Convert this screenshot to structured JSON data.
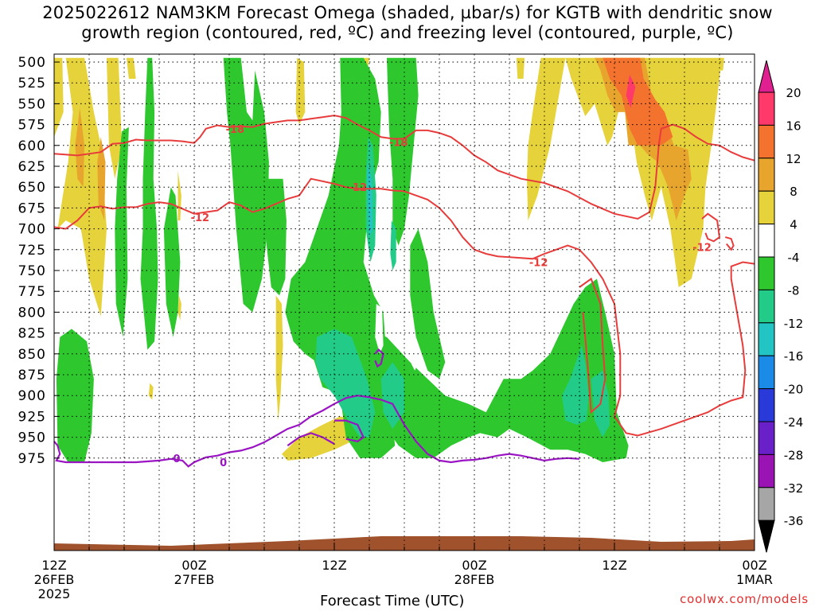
{
  "title": {
    "line1": "2025022612 NAM3KM Forecast Omega (shaded, µbar/s) for KGTB with dendritic snow",
    "line2": "growth region (contoured, red, ºC) and freezing level (contoured, purple, ºC)"
  },
  "credit": "coolwx.com/models",
  "chart_data": {
    "type": "heatmap",
    "title": "2025022612 NAM3KM Forecast Omega (shaded, µbar/s) for KGTB with dendritic snow growth region (contoured, red, ºC) and freezing level (contoured, purple, ºC)",
    "xlabel": "Forecast Time (UTC)",
    "ylabel": "",
    "y_axis_levels": [
      500,
      525,
      550,
      575,
      600,
      625,
      650,
      675,
      700,
      725,
      750,
      775,
      800,
      825,
      850,
      875,
      900,
      925,
      950,
      975
    ],
    "y_axis_labels": [
      "500",
      "525",
      "550",
      "575",
      "600",
      "625",
      "650",
      "675",
      "700",
      "725",
      "750",
      "775",
      "800",
      "825",
      "850",
      "875",
      "900",
      "925",
      "950",
      "975"
    ],
    "x_ticks": [
      {
        "hour": 0,
        "label": "12Z",
        "date": "26FEB",
        "year": "2025"
      },
      {
        "hour": 12,
        "label": "00Z",
        "date": "27FEB",
        "year": ""
      },
      {
        "hour": 24,
        "label": "12Z",
        "date": "",
        "year": ""
      },
      {
        "hour": 36,
        "label": "00Z",
        "date": "28FEB",
        "year": ""
      },
      {
        "hour": 48,
        "label": "12Z",
        "date": "",
        "year": ""
      },
      {
        "hour": 60,
        "label": "00Z",
        "date": "1MAR",
        "year": ""
      }
    ],
    "x_range_hours": [
      0,
      60
    ],
    "grid": true,
    "colorbar": {
      "labels": [
        "20",
        "16",
        "12",
        "8",
        "4",
        "-4",
        "-8",
        "-12",
        "-16",
        "-20",
        "-24",
        "-28",
        "-32",
        "-36"
      ],
      "bins": [
        {
          "color": "#ff3a6a"
        },
        {
          "color": "#f2722e"
        },
        {
          "color": "#e8a52e"
        },
        {
          "color": "#e6d23a"
        },
        {
          "color": "#ffffff"
        },
        {
          "color": "#2ec82e"
        },
        {
          "color": "#22cc88"
        },
        {
          "color": "#22c4c4"
        },
        {
          "color": "#1a8ce8"
        },
        {
          "color": "#2a3ad8"
        },
        {
          "color": "#6a20c8"
        },
        {
          "color": "#9a14b4"
        },
        {
          "color": "#a6a6a6"
        }
      ],
      "top_triangle": "#e02090",
      "bottom_triangle": "#000000"
    },
    "contour_labels": [
      {
        "text": "-18",
        "color": "#e83c3c",
        "hour": 15.5,
        "level": 580
      },
      {
        "text": "-18",
        "color": "#e83c3c",
        "hour": 29.5,
        "level": 596
      },
      {
        "text": "-12",
        "color": "#e83c3c",
        "hour": 26.0,
        "level": 650
      },
      {
        "text": "-12",
        "color": "#e83c3c",
        "hour": 12.5,
        "level": 686
      },
      {
        "text": "-12",
        "color": "#e83c3c",
        "hour": 41.5,
        "level": 740
      },
      {
        "text": "-12",
        "color": "#e83c3c",
        "hour": 55.5,
        "level": 722
      },
      {
        "text": "0",
        "color": "#9a14c4",
        "hour": 10.5,
        "level": 975
      },
      {
        "text": "0",
        "color": "#9a14c4",
        "hour": 14.5,
        "level": 980
      }
    ],
    "series": [
      {
        "kind": "surface",
        "color": "#a0522d"
      },
      {
        "kind": "contour",
        "color": "#e83c3c"
      },
      {
        "kind": "contour",
        "color": "#9a14c4"
      }
    ]
  }
}
